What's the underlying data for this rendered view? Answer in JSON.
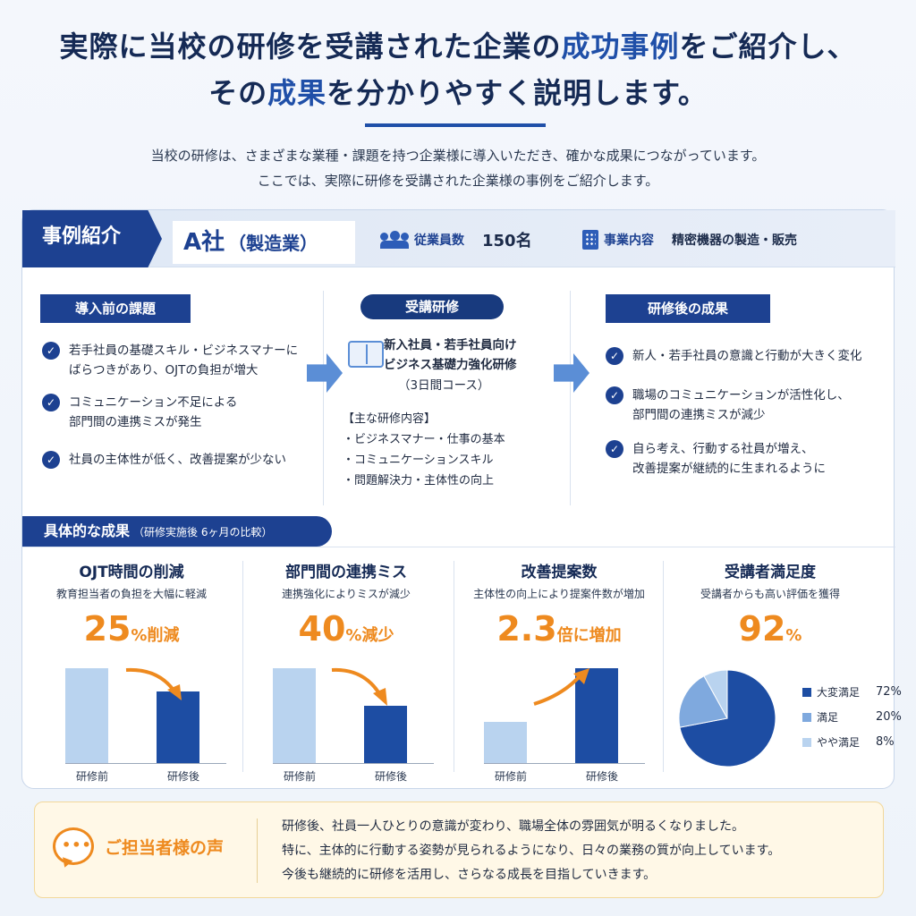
{
  "headline": {
    "line1_a": "実際に当校の研修を受講された企業の",
    "line1_hl": "成功事例",
    "line1_b": "をご紹介し、",
    "line2_a": "その",
    "line2_hl": "成果",
    "line2_b": "を分かりやすく説明します。"
  },
  "intro": {
    "line1": "当校の研修は、さまざまな業種・課題を持つ企業様に導入いただき、確かな成果につながっています。",
    "line2": "ここでは、実際に研修を受講された企業様の事例をご紹介します。"
  },
  "case": {
    "tag": "事例紹介",
    "company_name": "A社",
    "company_sector": "（製造業）",
    "employees_label": "従業員数",
    "employees_value": "150名",
    "business_label": "事業内容",
    "business_value": "精密機器の製造・販売"
  },
  "before": {
    "title": "導入前の課題",
    "items": [
      {
        "l1": "若手社員の基礎スキル・ビジネスマナーに",
        "l2": "ばらつきがあり、OJTの負担が増大"
      },
      {
        "l1": "コミュニケーション不足による",
        "l2": "部門間の連携ミスが発生"
      },
      {
        "l1": "社員の主体性が低く、改善提案が少ない",
        "l2": ""
      }
    ]
  },
  "course": {
    "title": "受講研修",
    "name_l1": "新入社員・若手社員向け",
    "name_l2": "ビジネス基礎力強化研修",
    "duration": "（3日間コース）",
    "contents_label": "【主な研修内容】",
    "contents": [
      "・ビジネスマナー・仕事の基本",
      "・コミュニケーションスキル",
      "・問題解決力・主体性の向上"
    ]
  },
  "after": {
    "title": "研修後の成果",
    "items": [
      {
        "l1": "新人・若手社員の意識と行動が大きく変化",
        "l2": ""
      },
      {
        "l1": "職場のコミュニケーションが活性化し、",
        "l2": "部門間の連携ミスが減少"
      },
      {
        "l1": "自ら考え、行動する社員が増え、",
        "l2": "改善提案が継続的に生まれるように"
      }
    ]
  },
  "results": {
    "tag": "具体的な成果",
    "tag_note": "（研修実施後 6ヶ月の比較）",
    "bar_before_label": "研修前",
    "bar_after_label": "研修後"
  },
  "metrics": [
    {
      "title": "OJT時間の削減",
      "sub": "教育担当者の負担を大幅に軽減",
      "num": "25",
      "unit": "%削減"
    },
    {
      "title": "部門間の連携ミス",
      "sub": "連携強化によりミスが減少",
      "num": "40",
      "unit": "%減少"
    },
    {
      "title": "改善提案数",
      "sub": "主体性の向上により提案件数が増加",
      "num": "2.3",
      "unit": "倍に増加"
    },
    {
      "title": "受講者満足度",
      "sub": "受講者からも高い評価を獲得",
      "num": "92",
      "unit": "%"
    }
  ],
  "chart_data": [
    {
      "type": "bar",
      "categories": [
        "研修前",
        "研修後"
      ],
      "values": [
        100,
        75
      ],
      "ylim": [
        0,
        100
      ]
    },
    {
      "type": "bar",
      "categories": [
        "研修前",
        "研修後"
      ],
      "values": [
        100,
        60
      ],
      "ylim": [
        0,
        100
      ]
    },
    {
      "type": "bar",
      "categories": [
        "研修前",
        "研修後"
      ],
      "values": [
        1,
        2.3
      ],
      "ylim": [
        0,
        2.3
      ]
    },
    {
      "type": "pie",
      "categories": [
        "大変満足",
        "満足",
        "やや満足"
      ],
      "values": [
        72,
        20,
        8
      ],
      "labels": [
        "72%",
        "20%",
        "8%"
      ],
      "colors": [
        "#1d4da3",
        "#7fa9de",
        "#b9d3ef"
      ],
      "legend": "right"
    }
  ],
  "voice": {
    "title": "ご担当者様の声",
    "line1": "研修後、社員一人ひとりの意識が変わり、職場全体の雰囲気が明るくなりました。",
    "line2": "特に、主体的に行動する姿勢が見られるようになり、日々の業務の質が向上しています。",
    "line3": "今後も継続的に研修を活用し、さらなる成長を目指していきます。"
  },
  "colors": {
    "navy": "#1d4191",
    "accent": "#ee8a1f",
    "light_blue": "#b9d3ef"
  }
}
